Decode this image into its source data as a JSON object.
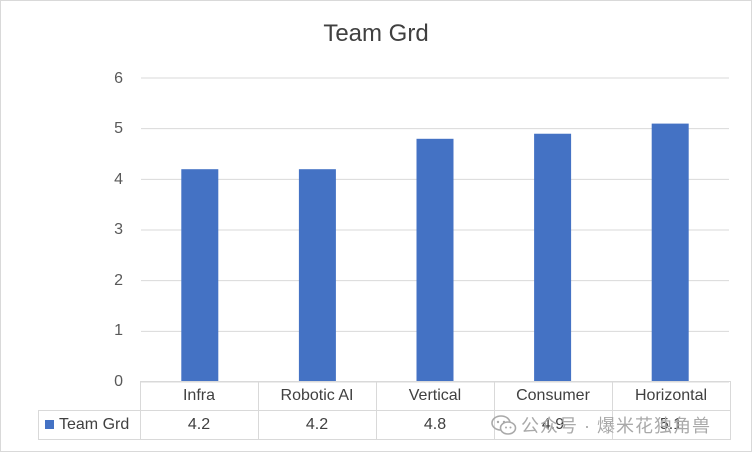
{
  "chart_data": {
    "type": "bar",
    "title": "Team Grd",
    "categories": [
      "Infra",
      "Robotic AI",
      "Vertical",
      "Consumer",
      "Horizontal"
    ],
    "series": [
      {
        "name": "Team Grd",
        "values": [
          4.2,
          4.2,
          4.8,
          4.9,
          5.1
        ],
        "color": "#4472C4"
      }
    ],
    "table_values": [
      "4.2",
      "4.2",
      "4.8",
      "4.9",
      "5.1"
    ],
    "ylim": [
      0,
      6
    ],
    "yticks": [
      "0",
      "1",
      "2",
      "3",
      "4",
      "5",
      "6"
    ],
    "grid": true,
    "legend": "data-table",
    "xlabel": "",
    "ylabel": ""
  },
  "watermark": {
    "text": "公众号 · 爆米花独角兽",
    "icon": "wechat-icon"
  }
}
